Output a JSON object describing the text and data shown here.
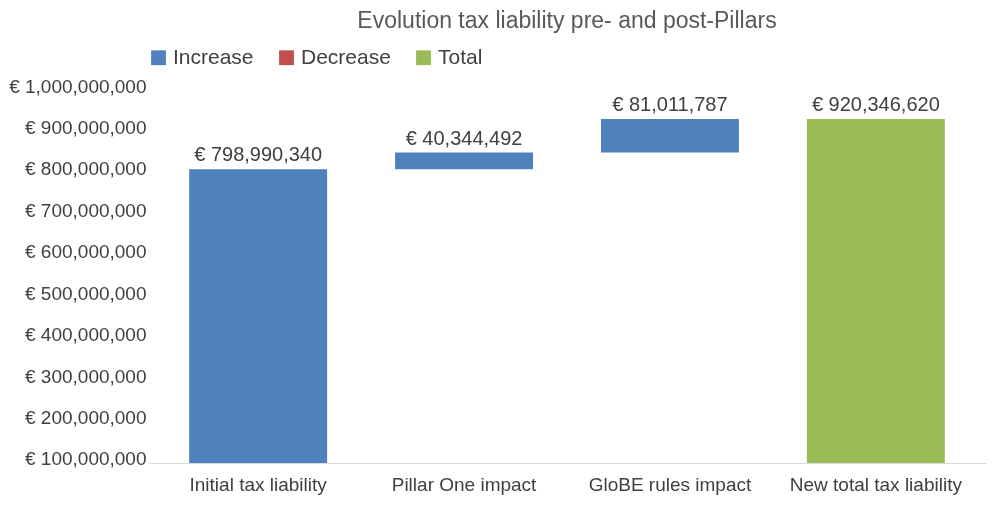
{
  "chart_data": {
    "type": "bar",
    "title": "Evolution tax liability pre- and post-Pillars",
    "categories": [
      "Initial tax liability",
      "Pillar One impact",
      "GloBE rules impact",
      "New total tax liability"
    ],
    "series": [
      {
        "name": "Increase",
        "color": "#4f81bd",
        "base": [
          null,
          798990340,
          839334832,
          null
        ],
        "values": [
          798990340,
          40344492,
          81011787,
          null
        ],
        "value_labels": [
          "€ 798,990,340",
          "€ 40,344,492",
          "€ 81,011,787",
          null
        ]
      },
      {
        "name": "Decrease",
        "color": "#c0504d",
        "values": [
          null,
          null,
          null,
          null
        ]
      },
      {
        "name": "Total",
        "color": "#9bbb59",
        "values": [
          null,
          null,
          null,
          920346620
        ],
        "value_labels": [
          null,
          null,
          null,
          "€ 920,346,620"
        ]
      }
    ],
    "ylim": [
      90000000,
      1000000000
    ],
    "yticks": [
      {
        "value": 100000000,
        "label": "€ 100,000,000"
      },
      {
        "value": 200000000,
        "label": "€ 200,000,000"
      },
      {
        "value": 300000000,
        "label": "€ 300,000,000"
      },
      {
        "value": 400000000,
        "label": "€ 400,000,000"
      },
      {
        "value": 500000000,
        "label": "€ 500,000,000"
      },
      {
        "value": 600000000,
        "label": "€ 600,000,000"
      },
      {
        "value": 700000000,
        "label": "€ 700,000,000"
      },
      {
        "value": 800000000,
        "label": "€ 800,000,000"
      },
      {
        "value": 900000000,
        "label": "€ 900,000,000"
      },
      {
        "value": 1000000000,
        "label": "€ 1,000,000,000"
      }
    ],
    "legend": "top"
  }
}
